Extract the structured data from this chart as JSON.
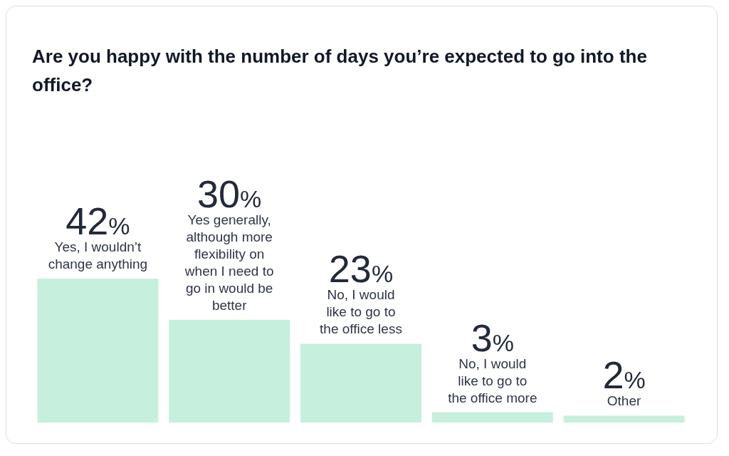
{
  "chart_data": {
    "type": "bar",
    "title": "Are you happy with the number of days you’re expected to go into the office?",
    "categories": [
      "Yes, I wouldn’t change anything",
      "Yes generally, although more flexibility on when I need to go in would be better",
      "No, I would like to go to the office less",
      "No, I would like to go to the office more",
      "Other"
    ],
    "values": [
      42,
      30,
      23,
      3,
      2
    ],
    "value_labels": [
      "42%",
      "30%",
      "23%",
      "3%",
      "2%"
    ],
    "color": "#21c17a"
  }
}
